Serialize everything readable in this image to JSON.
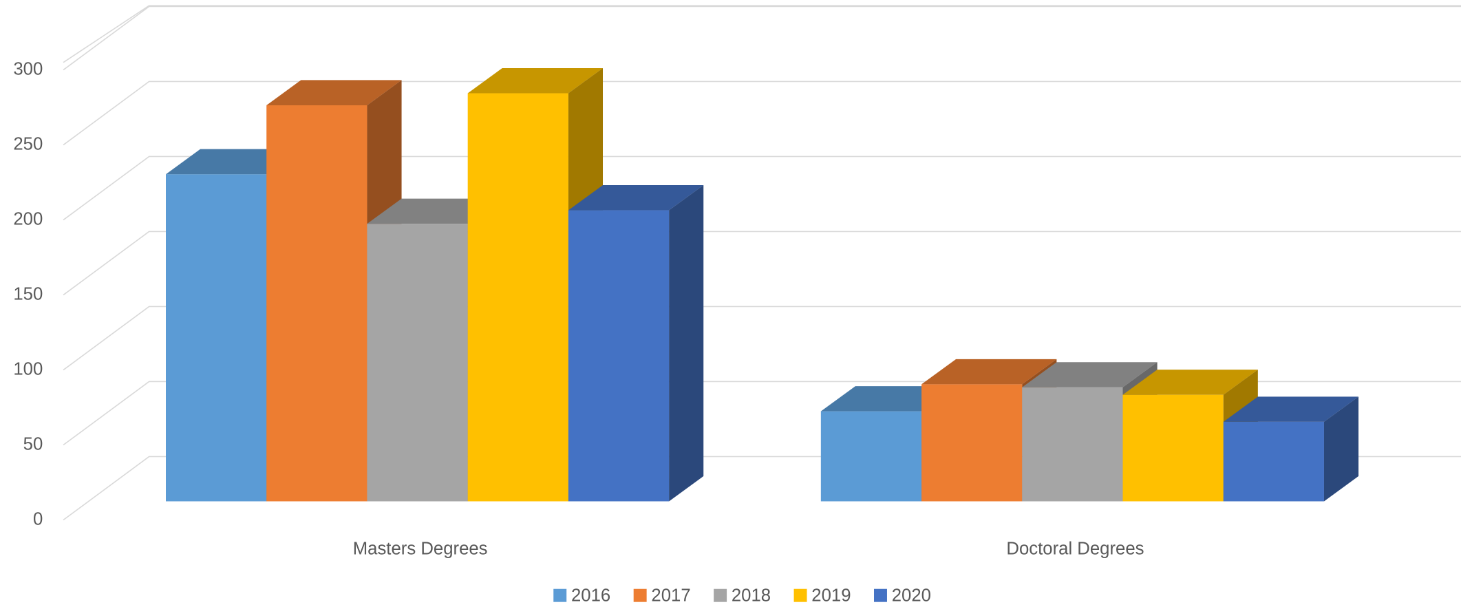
{
  "chart_data": {
    "type": "bar3d",
    "categories": [
      "Masters Degrees",
      "Doctoral Degrees"
    ],
    "series": [
      {
        "name": "2016",
        "color": "#5b9bd5",
        "values": [
          218,
          60
        ]
      },
      {
        "name": "2017",
        "color": "#ed7d31",
        "values": [
          264,
          78
        ]
      },
      {
        "name": "2018",
        "color": "#a5a5a5",
        "values": [
          185,
          76
        ]
      },
      {
        "name": "2019",
        "color": "#ffc000",
        "values": [
          272,
          71
        ]
      },
      {
        "name": "2020",
        "color": "#4472c4",
        "values": [
          194,
          53
        ]
      }
    ],
    "ylim": [
      0,
      350
    ],
    "yticks": [
      0,
      50,
      100,
      150,
      200,
      250,
      300
    ],
    "grid": true,
    "legend": "bottom"
  }
}
